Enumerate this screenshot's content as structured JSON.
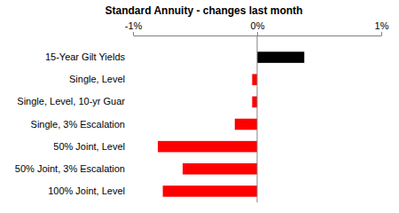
{
  "chart_data": {
    "type": "bar",
    "orientation": "horizontal",
    "title": "Standard Annuity - changes last month",
    "categories": [
      "15-Year Gilt Yields",
      "Single, Level",
      "Single, Level, 10-yr Guar",
      "Single, 3% Escalation",
      "50% Joint, Level",
      "50% Joint, 3% Escalation",
      "100% Joint, Level"
    ],
    "values": [
      0.38,
      -0.04,
      -0.04,
      -0.18,
      -0.8,
      -0.6,
      -0.76
    ],
    "colors": [
      "#000000",
      "#ff0000",
      "#ff0000",
      "#ff0000",
      "#ff0000",
      "#ff0000",
      "#ff0000"
    ],
    "xlim": [
      -1,
      1
    ],
    "xticks": [
      {
        "value": -1,
        "label": "-1%"
      },
      {
        "value": 0,
        "label": "0%"
      },
      {
        "value": 1,
        "label": "1%"
      }
    ],
    "grid": false
  }
}
